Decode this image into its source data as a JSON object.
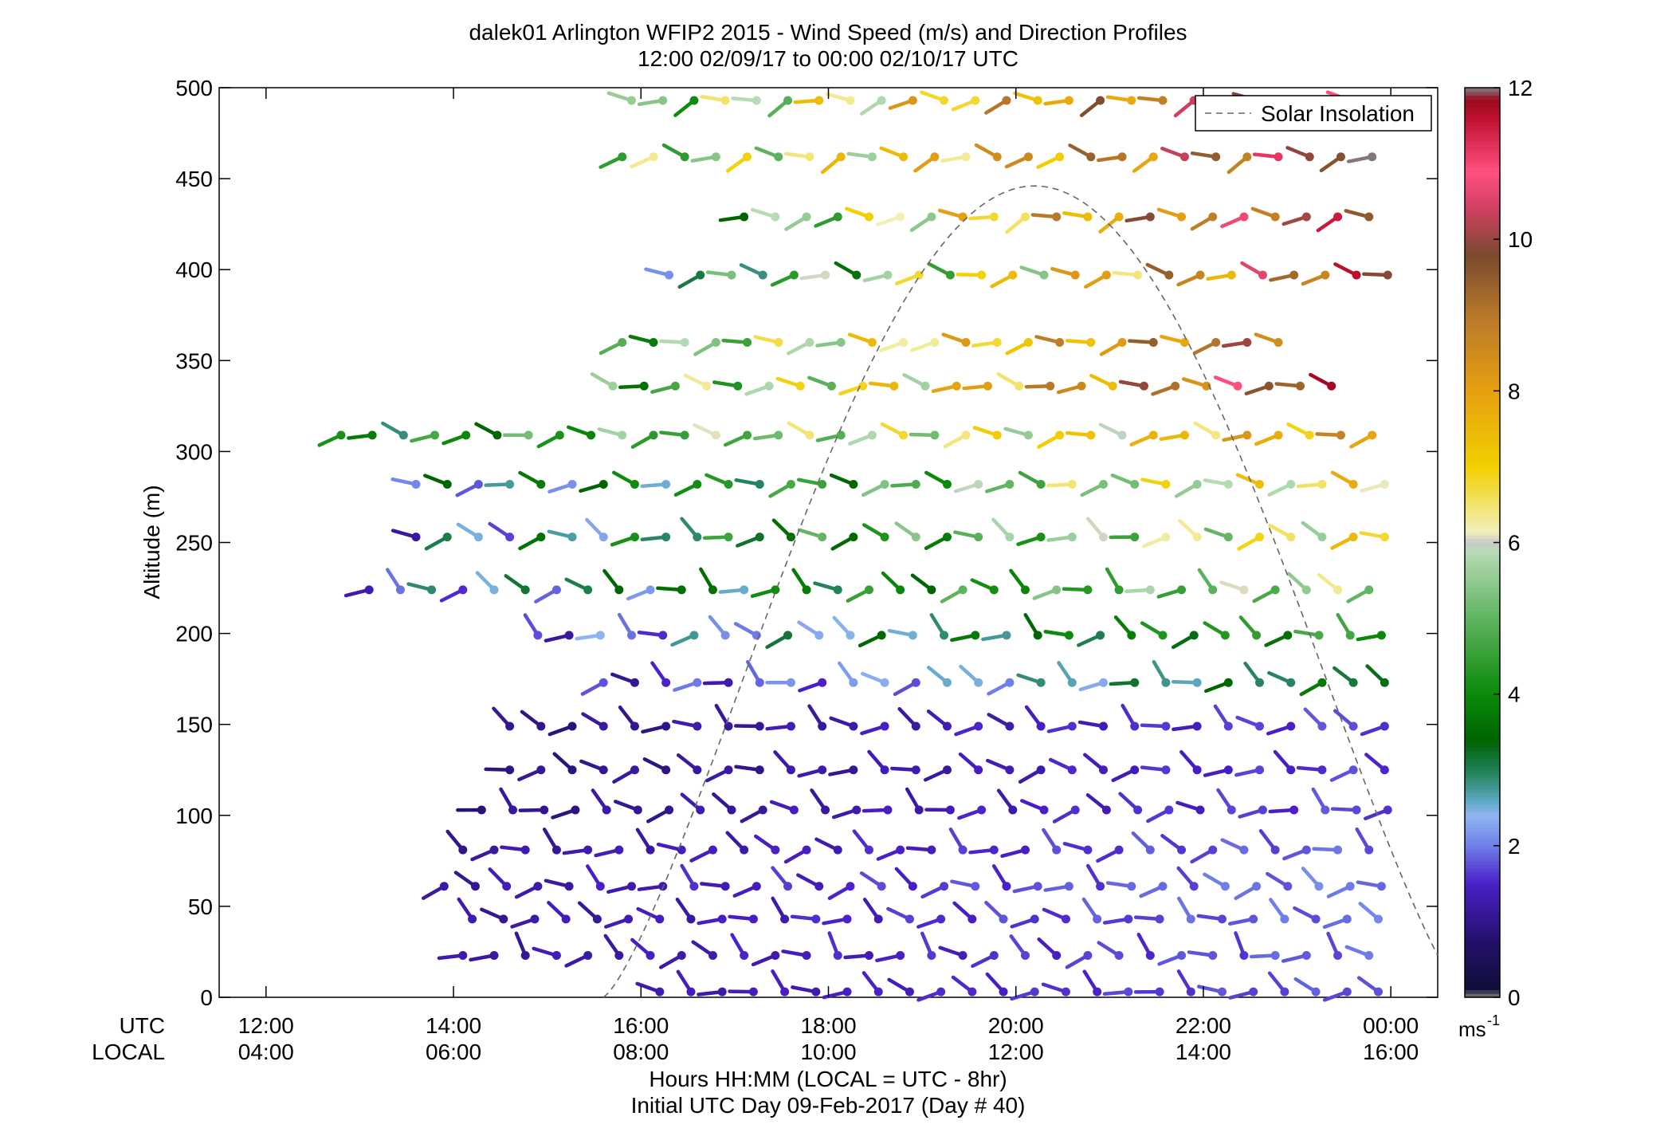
{
  "chart_data": {
    "type": "wind-barb-profile",
    "title": "dalek01 Arlington WFIP2 2015 - Wind Speed (m/s) and Direction Profiles",
    "subtitle": "12:00 02/09/17 to 00:00 02/10/17  UTC",
    "ylabel": "Altitude (m)",
    "xlabel_line1": "Hours HH:MM  (LOCAL = UTC - 8hr)",
    "xlabel_line2": "Initial UTC Day 09-Feb-2017 (Day # 40)",
    "utc_row_label": "UTC",
    "local_row_label": "LOCAL",
    "x_range_hours_utc": [
      11.5,
      24.5
    ],
    "ylim": [
      0,
      500
    ],
    "y_ticks": [
      "0",
      "50",
      "100",
      "150",
      "200",
      "250",
      "300",
      "350",
      "400",
      "450",
      "500"
    ],
    "x_ticks": [
      {
        "hour": 12,
        "utc": "12:00",
        "local": "04:00"
      },
      {
        "hour": 14,
        "utc": "14:00",
        "local": "06:00"
      },
      {
        "hour": 16,
        "utc": "16:00",
        "local": "08:00"
      },
      {
        "hour": 18,
        "utc": "18:00",
        "local": "10:00"
      },
      {
        "hour": 20,
        "utc": "20:00",
        "local": "12:00"
      },
      {
        "hour": 22,
        "utc": "22:00",
        "local": "14:00"
      },
      {
        "hour": 24,
        "utc": "00:00",
        "local": "16:00"
      }
    ],
    "legend": {
      "label": "Solar Insolation",
      "placement": "top-right",
      "style": "dashed",
      "color": "#666666"
    },
    "solar_insolation_curve": {
      "start_hour": 15.6,
      "end_hour": 24.5,
      "peak_hour": 20.2,
      "peak_altitude": 446
    },
    "colorbar": {
      "min": 0,
      "max": 12,
      "ticks": [
        "0",
        "2",
        "4",
        "6",
        "8",
        "10",
        "12"
      ],
      "unit_base": "ms",
      "unit_exp": "-1",
      "stops": [
        {
          "v": 0.0,
          "color": "#808080"
        },
        {
          "v": 0.12,
          "color": "#0f0f3a"
        },
        {
          "v": 0.7,
          "color": "#221066"
        },
        {
          "v": 1.5,
          "color": "#4a1fc8"
        },
        {
          "v": 2.0,
          "color": "#6f7ee8"
        },
        {
          "v": 2.4,
          "color": "#8fb6f2"
        },
        {
          "v": 2.6,
          "color": "#5da8c0"
        },
        {
          "v": 3.0,
          "color": "#1f7f55"
        },
        {
          "v": 3.4,
          "color": "#006400"
        },
        {
          "v": 4.0,
          "color": "#0a8a0a"
        },
        {
          "v": 5.0,
          "color": "#5fb35f"
        },
        {
          "v": 5.9,
          "color": "#b8dcb8"
        },
        {
          "v": 6.0,
          "color": "#c8c8c8"
        },
        {
          "v": 6.15,
          "color": "#f2f0b8"
        },
        {
          "v": 7.0,
          "color": "#f2d000"
        },
        {
          "v": 8.0,
          "color": "#e6a010"
        },
        {
          "v": 9.0,
          "color": "#b8782a"
        },
        {
          "v": 9.8,
          "color": "#7a4a30"
        },
        {
          "v": 10.4,
          "color": "#d04060"
        },
        {
          "v": 10.9,
          "color": "#ff5080"
        },
        {
          "v": 11.6,
          "color": "#c01030"
        },
        {
          "v": 11.85,
          "color": "#9a0a1e"
        },
        {
          "v": 12.0,
          "color": "#808080"
        }
      ]
    },
    "barb_rows": [
      {
        "alt": 3,
        "start": 16.2,
        "end": 23.9,
        "speed": [
          1.2,
          1.9
        ],
        "dir": [
          250,
          330
        ]
      },
      {
        "alt": 23,
        "start": 14.1,
        "end": 23.9,
        "speed": [
          1.0,
          2.0
        ],
        "dir": [
          240,
          340
        ]
      },
      {
        "alt": 43,
        "start": 14.2,
        "end": 23.9,
        "speed": [
          1.0,
          2.1
        ],
        "dir": [
          250,
          330
        ]
      },
      {
        "alt": 61,
        "start": 13.9,
        "end": 23.9,
        "speed": [
          1.0,
          2.2
        ],
        "dir": [
          240,
          330
        ]
      },
      {
        "alt": 81,
        "start": 14.1,
        "end": 23.9,
        "speed": [
          1.0,
          2.0
        ],
        "dir": [
          240,
          330
        ]
      },
      {
        "alt": 103,
        "start": 14.3,
        "end": 23.9,
        "speed": [
          0.8,
          1.9
        ],
        "dir": [
          240,
          330
        ]
      },
      {
        "alt": 125,
        "start": 14.6,
        "end": 23.9,
        "speed": [
          0.8,
          1.8
        ],
        "dir": [
          240,
          320
        ]
      },
      {
        "alt": 149,
        "start": 14.6,
        "end": 23.9,
        "speed": [
          0.8,
          1.9
        ],
        "dir": [
          250,
          330
        ]
      },
      {
        "alt": 173,
        "start": 15.6,
        "end": 23.9,
        "speed": [
          0.9,
          3.9
        ],
        "dir": [
          240,
          330
        ]
      },
      {
        "alt": 199,
        "start": 14.9,
        "end": 23.9,
        "speed": [
          1.0,
          5.2
        ],
        "dir": [
          240,
          330
        ]
      },
      {
        "alt": 224,
        "start": 13.1,
        "end": 23.9,
        "speed": [
          1.1,
          6.6
        ],
        "dir": [
          240,
          330
        ]
      },
      {
        "alt": 253,
        "start": 13.6,
        "end": 23.9,
        "speed": [
          1.1,
          7.8
        ],
        "dir": [
          240,
          320
        ]
      },
      {
        "alt": 282,
        "start": 13.6,
        "end": 23.9,
        "speed": [
          1.3,
          8.0
        ],
        "dir": [
          240,
          300
        ]
      },
      {
        "alt": 309,
        "start": 12.8,
        "end": 23.9,
        "speed": [
          2.5,
          9.0
        ],
        "dir": [
          240,
          300
        ]
      },
      {
        "alt": 336,
        "start": 15.7,
        "end": 23.4,
        "speed": [
          3.0,
          11.8
        ],
        "dir": [
          250,
          300
        ]
      },
      {
        "alt": 360,
        "start": 15.8,
        "end": 22.8,
        "speed": [
          3.5,
          10.5
        ],
        "dir": [
          240,
          290
        ]
      },
      {
        "alt": 397,
        "start": 16.3,
        "end": 23.9,
        "speed": [
          1.6,
          12.0
        ],
        "dir": [
          240,
          300
        ]
      },
      {
        "alt": 429,
        "start": 17.1,
        "end": 23.9,
        "speed": [
          3.4,
          12.0
        ],
        "dir": [
          230,
          290
        ]
      },
      {
        "alt": 462,
        "start": 15.8,
        "end": 23.9,
        "speed": [
          3.6,
          12.0
        ],
        "dir": [
          230,
          300
        ]
      },
      {
        "alt": 493,
        "start": 15.9,
        "end": 23.9,
        "speed": [
          3.5,
          12.0
        ],
        "dir": [
          230,
          290
        ]
      }
    ]
  }
}
